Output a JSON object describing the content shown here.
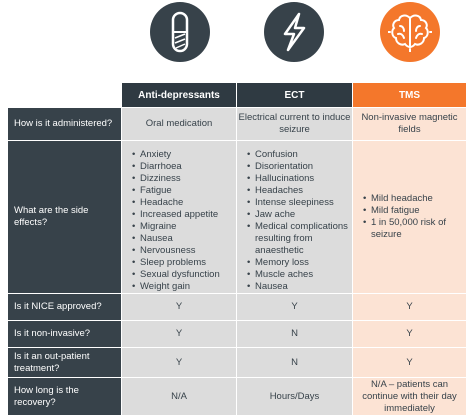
{
  "icons": [
    {
      "name": "pill-icon",
      "color": "#37424a"
    },
    {
      "name": "lightning-icon",
      "color": "#37424a"
    },
    {
      "name": "brain-icon",
      "color": "#f4772b"
    }
  ],
  "columns": [
    "Anti-depressants",
    "ECT",
    "TMS"
  ],
  "rows": {
    "administered": {
      "label": "How is it administered?",
      "values": [
        "Oral medication",
        "Electrical current to induce seizure",
        "Non-invasive magnetic fields"
      ]
    },
    "side_effects": {
      "label": "What are the side effects?",
      "antidepressants": [
        "Anxiety",
        "Diarrhoea",
        "Dizziness",
        "Fatigue",
        "Headache",
        "Increased appetite",
        "Migraine",
        "Nausea",
        "Nervousness",
        "Sleep problems",
        "Sexual dysfunction",
        "Weight gain"
      ],
      "ect": [
        "Confusion",
        "Disorientation",
        "Hallucinations",
        "Headaches",
        "Intense sleepiness",
        "Jaw ache",
        "Medical complications resulting from anaesthetic",
        "Memory loss",
        "Muscle aches",
        "Nausea"
      ],
      "tms": [
        "Mild headache",
        "Mild fatigue",
        "1 in 50,000 risk of seizure"
      ]
    },
    "nice": {
      "label": "Is it NICE approved?",
      "values": [
        "Y",
        "Y",
        "Y"
      ]
    },
    "noninvasive": {
      "label": "Is it non-invasive?",
      "values": [
        "Y",
        "N",
        "Y"
      ]
    },
    "outpatient": {
      "label": "Is it an out-patient treatment?",
      "values": [
        "Y",
        "N",
        "Y"
      ]
    },
    "recovery": {
      "label": "How long is the recovery?",
      "values": [
        "N/A",
        "Hours/Days",
        "N/A – patients can continue with their day immediately"
      ]
    }
  }
}
